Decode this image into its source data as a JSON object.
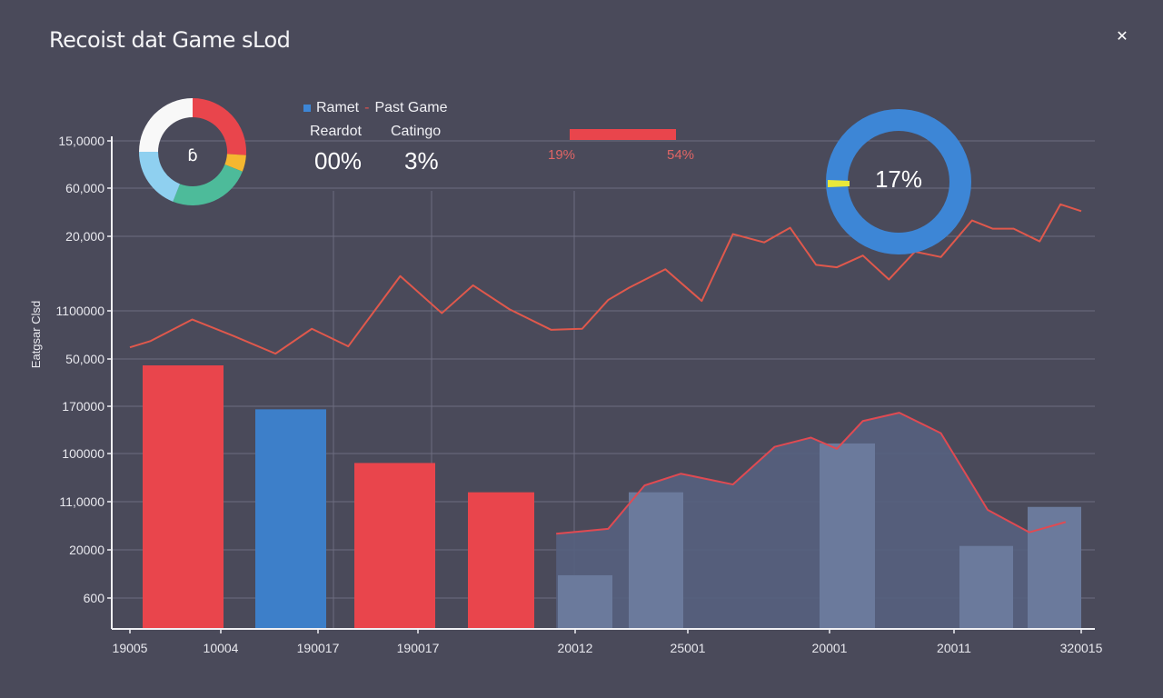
{
  "window": {
    "title": "Recoist dat Game sLod",
    "close_icon": "close-icon"
  },
  "legend": {
    "marker_color": "#3d86d6",
    "label_a": "Ramet",
    "separator": "-",
    "label_b": "Past Game"
  },
  "stats": [
    {
      "label": "Reardot",
      "value": "00%"
    },
    {
      "label": "Catingo",
      "value": "3%"
    }
  ],
  "range": {
    "low_label": "19%",
    "high_label": "54%",
    "low": 19,
    "high": 54,
    "color": "#e9454c"
  },
  "gauge": {
    "label": "17%",
    "value": 17,
    "ring_color": "#3d86d6",
    "marker_color": "#e8e83a"
  },
  "chart_data": [
    {
      "type": "pie",
      "title": "",
      "center_label": "ɓ",
      "donut": true,
      "slices": [
        {
          "name": "red",
          "value": 26,
          "color": "#e9454c"
        },
        {
          "name": "yellow",
          "value": 5,
          "color": "#f5b730"
        },
        {
          "name": "green",
          "value": 25,
          "color": "#4dbb9a"
        },
        {
          "name": "light-blue",
          "value": 19,
          "color": "#8fd0f0"
        },
        {
          "name": "white",
          "value": 25,
          "color": "#f8f8f8"
        }
      ]
    },
    {
      "type": "bar",
      "title": "",
      "xlabel": "",
      "ylabel": "Eatgsar Clsd",
      "ytick_labels": [
        "15,0000",
        "60,000",
        "20,000",
        "1100000",
        "50,000",
        "170000",
        "100000",
        "11,0000",
        "20000",
        "600"
      ],
      "xtick_labels": [
        "19005",
        "10004",
        "190017",
        "190017",
        "20012",
        "25001",
        "20001",
        "20011",
        "320015"
      ],
      "grid": true,
      "y_scale_note": "values expressed in gridline units (0 = baseline, 10 = top gridline)",
      "ylim": [
        0,
        10
      ],
      "bars": [
        {
          "x": 0.5,
          "value": 5.4,
          "color": "#e9454c"
        },
        {
          "x": 1.5,
          "value": 4.5,
          "color": "#3d7fc9"
        },
        {
          "x": 2.5,
          "value": 3.4,
          "color": "#e9454c"
        },
        {
          "x": 3.5,
          "value": 2.8,
          "color": "#e9454c"
        },
        {
          "x": 4.4,
          "value": 1.1,
          "color": "#6b7a9c"
        },
        {
          "x": 5.0,
          "value": 2.8,
          "color": "#6b7a9c"
        },
        {
          "x": 6.4,
          "value": 3.8,
          "color": "#6b7a9c"
        },
        {
          "x": 7.4,
          "value": 1.7,
          "color": "#6b7a9c"
        },
        {
          "x": 8.0,
          "value": 2.5,
          "color": "#6b7a9c"
        }
      ],
      "series": [
        {
          "name": "upper-line",
          "color": "#e0584c",
          "x": [
            0,
            0.2,
            0.6,
            1.0,
            1.4,
            1.75,
            2.1,
            2.6,
            3.0,
            3.3,
            3.65,
            4.05,
            4.35,
            4.6,
            4.8,
            5.15,
            5.5,
            5.8,
            6.1,
            6.35,
            6.6,
            6.8,
            7.05,
            7.3,
            7.55,
            7.8,
            8.1,
            8.3,
            8.5,
            8.75,
            8.95,
            9.15
          ],
          "y": [
            5.77,
            5.9,
            6.34,
            6.0,
            5.64,
            6.15,
            5.79,
            7.23,
            6.47,
            7.04,
            6.55,
            6.13,
            6.15,
            6.74,
            6.99,
            7.37,
            6.72,
            8.09,
            7.92,
            8.22,
            7.46,
            7.41,
            7.65,
            7.16,
            7.73,
            7.62,
            8.37,
            8.2,
            8.2,
            7.94,
            8.7,
            8.56
          ]
        },
        {
          "name": "area-line",
          "color": "#e04a52",
          "fill": "#56607e",
          "x": [
            4.1,
            4.6,
            4.95,
            5.3,
            5.8,
            6.2,
            6.55,
            6.8,
            7.05,
            7.4,
            7.8,
            8.25,
            8.65,
            9.0
          ],
          "y": [
            1.95,
            2.05,
            2.94,
            3.18,
            2.96,
            3.73,
            3.92,
            3.69,
            4.26,
            4.43,
            4.01,
            2.44,
            1.98,
            2.19
          ]
        }
      ]
    }
  ]
}
